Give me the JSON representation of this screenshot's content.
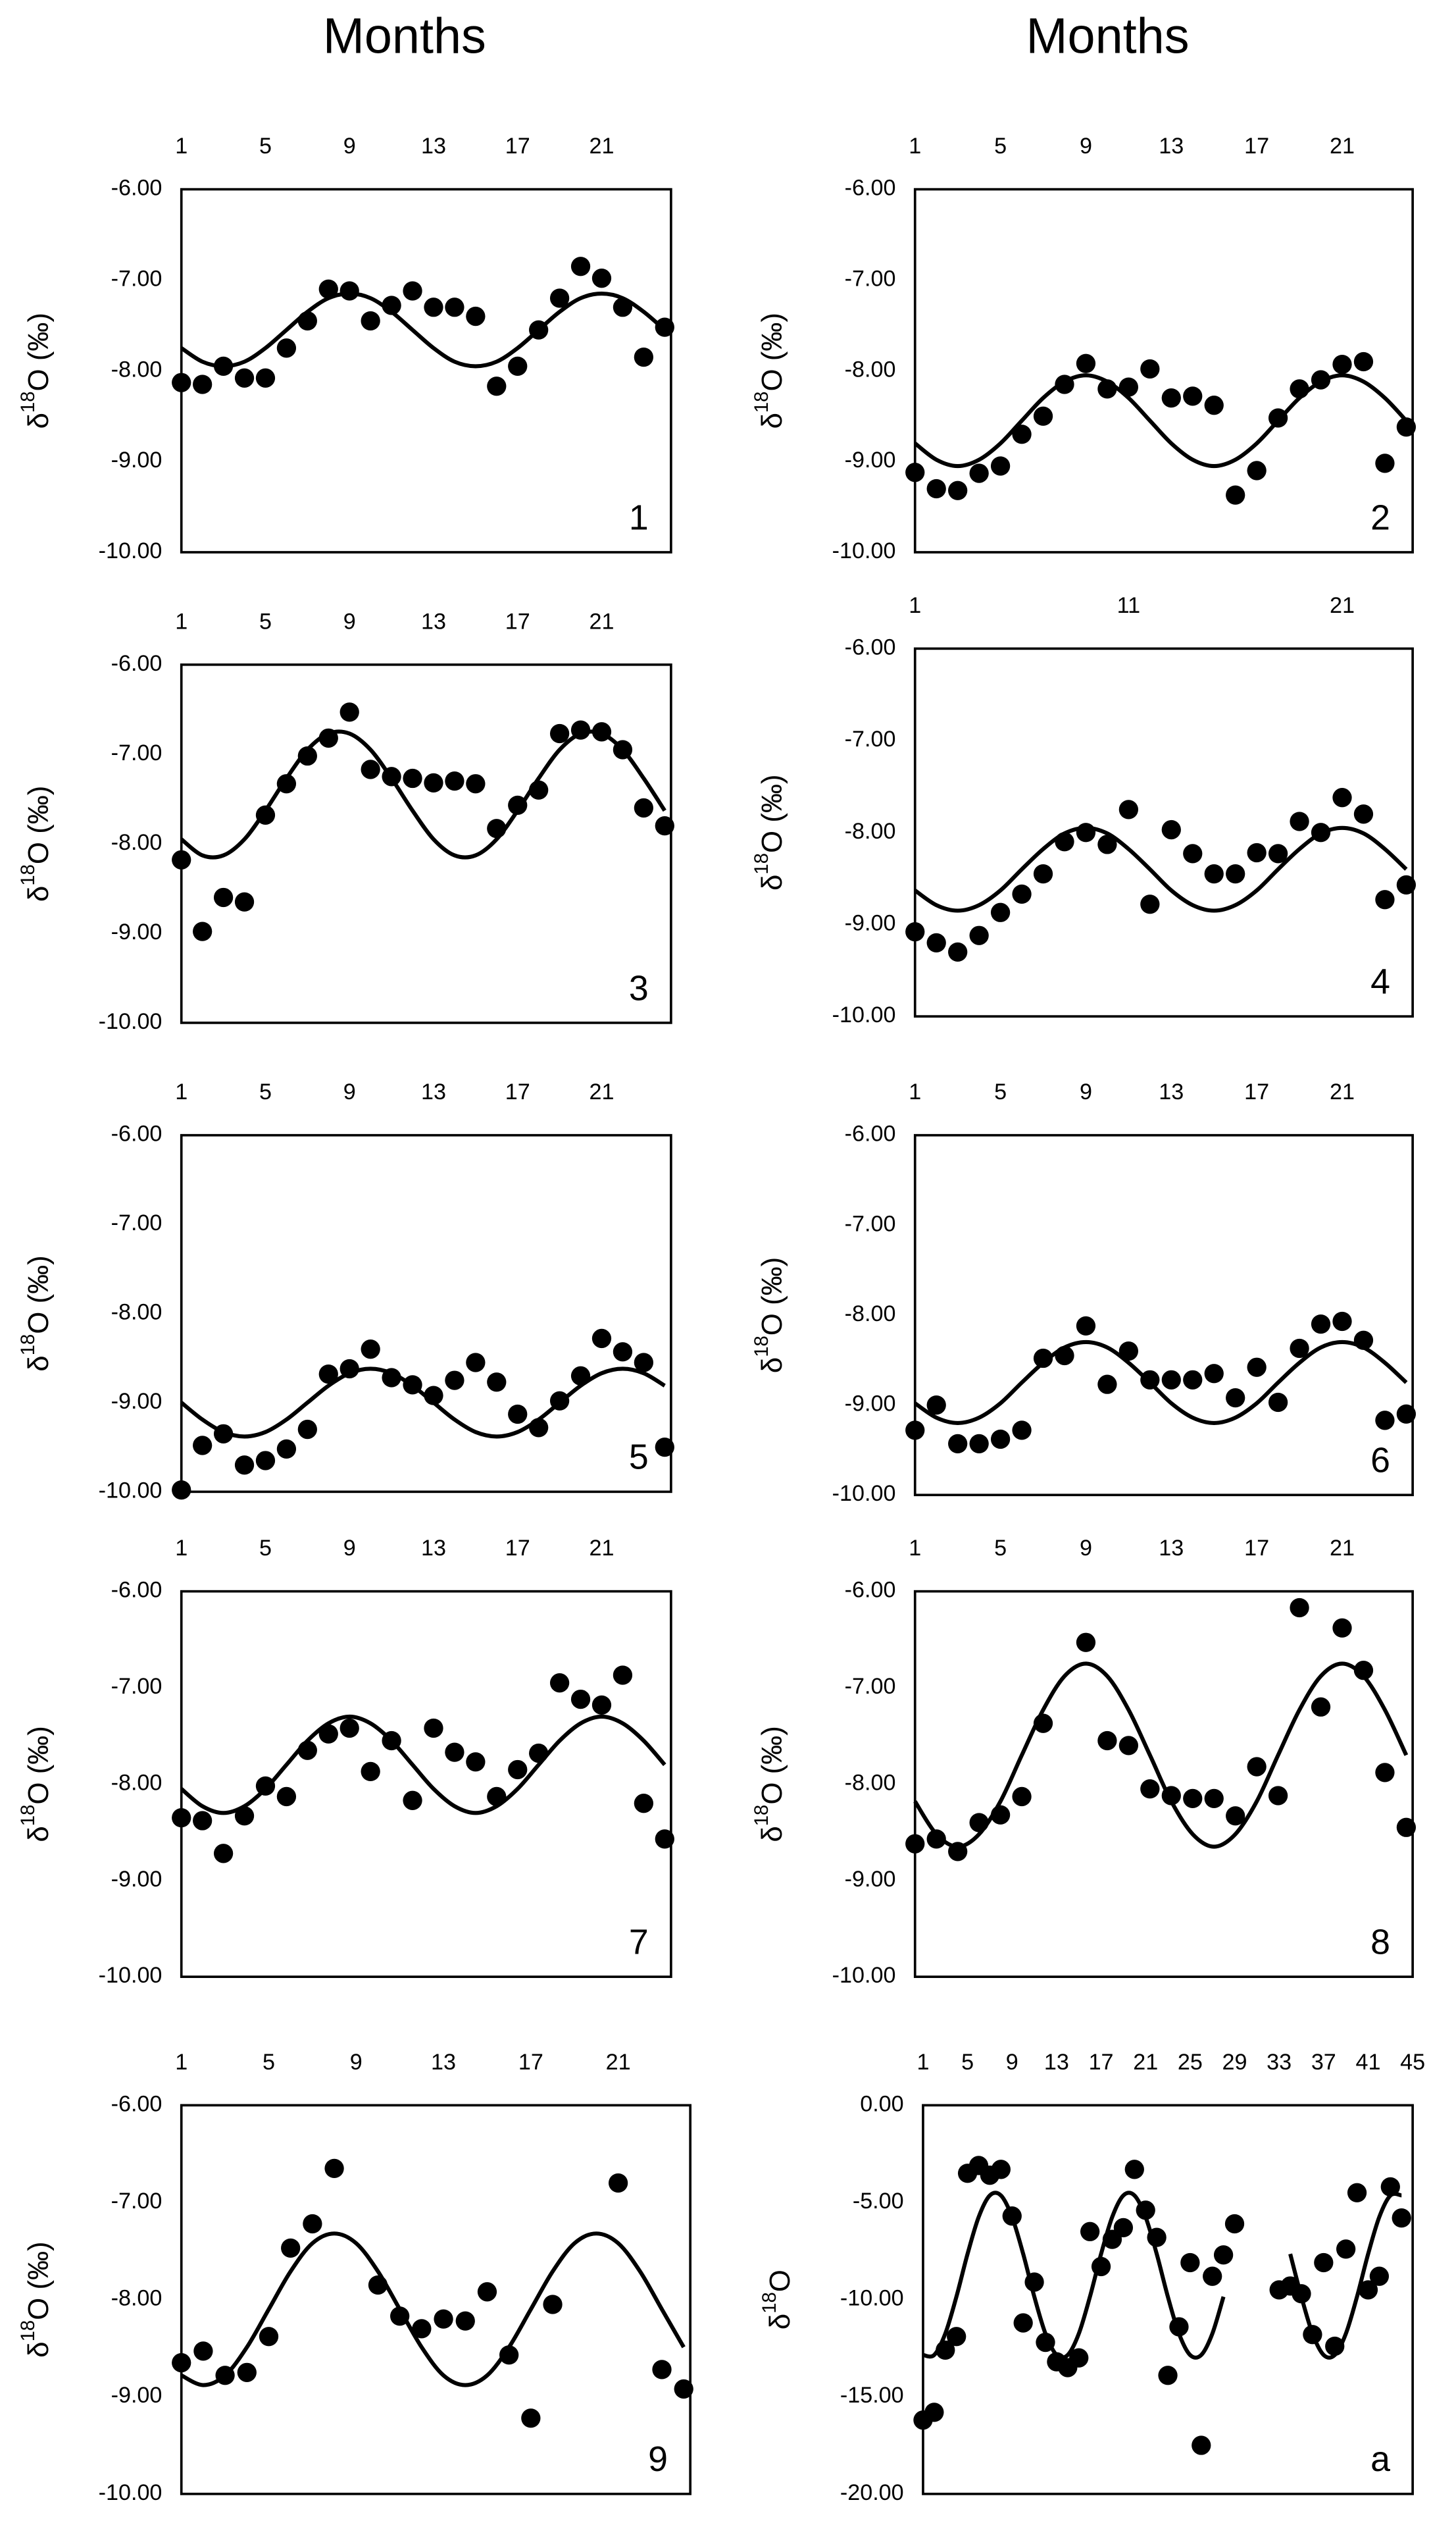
{
  "titles": [
    "Months",
    "Months"
  ],
  "chart_data": [
    {
      "type": "scatter",
      "label": "1",
      "ylabel": [
        "δ",
        "18",
        "O (‰)"
      ],
      "color": "#000000",
      "x": [
        1,
        2,
        3,
        4,
        5,
        6,
        7,
        8,
        9,
        10,
        11,
        12,
        13,
        14,
        15,
        16,
        17,
        18,
        19,
        20,
        21,
        22,
        23,
        24
      ],
      "values": [
        -8.13,
        -8.15,
        -7.95,
        -8.08,
        -8.08,
        -7.75,
        -7.45,
        -7.1,
        -7.12,
        -7.45,
        -7.28,
        -7.12,
        -7.3,
        -7.3,
        -7.4,
        -8.17,
        -7.95,
        -7.55,
        -7.2,
        -6.85,
        -6.98,
        -7.3,
        -7.85,
        -7.52
      ],
      "fit": [
        -7.75,
        -7.9,
        -7.95,
        -7.9,
        -7.75,
        -7.55,
        -7.35,
        -7.2,
        -7.15,
        -7.2,
        -7.35,
        -7.55,
        -7.75,
        -7.9,
        -7.95,
        -7.9,
        -7.75,
        -7.55,
        -7.35,
        -7.2,
        -7.15,
        -7.2,
        -7.35,
        -7.55
      ],
      "xlim": [
        1,
        24.3
      ],
      "xticks": [
        1,
        5,
        9,
        13,
        17,
        21
      ],
      "ylim": [
        -10,
        -6
      ],
      "yticks": [
        {
          "value": -6,
          "label": "-6.00"
        },
        {
          "value": -7,
          "label": "-7.00"
        },
        {
          "value": -8,
          "label": "-8.00"
        },
        {
          "value": -9,
          "label": "-9.00"
        },
        {
          "value": -10,
          "label": "-10.00"
        }
      ]
    },
    {
      "type": "scatter",
      "label": "2",
      "ylabel": [
        "δ",
        "18",
        "O (‰)"
      ],
      "color": "#000000",
      "x": [
        1,
        2,
        3,
        4,
        5,
        6,
        7,
        8,
        9,
        10,
        11,
        12,
        13,
        14,
        15,
        16,
        17,
        18,
        19,
        20,
        21,
        22,
        23,
        24
      ],
      "values": [
        -9.12,
        -9.3,
        -9.32,
        -9.13,
        -9.05,
        -8.7,
        -8.5,
        -8.15,
        -7.92,
        -8.2,
        -8.18,
        -7.98,
        -8.3,
        -8.28,
        -8.38,
        -9.37,
        -9.1,
        -8.52,
        -8.2,
        -8.1,
        -7.93,
        -7.9,
        -9.02,
        -8.62
      ],
      "fit": [
        -8.8,
        -8.98,
        -9.05,
        -8.98,
        -8.8,
        -8.55,
        -8.3,
        -8.12,
        -8.05,
        -8.12,
        -8.3,
        -8.55,
        -8.8,
        -8.98,
        -9.05,
        -8.98,
        -8.8,
        -8.55,
        -8.3,
        -8.12,
        -8.05,
        -8.12,
        -8.3,
        -8.55
      ],
      "xlim": [
        1,
        24.3
      ],
      "xticks": [
        1,
        5,
        9,
        13,
        17,
        21
      ],
      "ylim": [
        -10,
        -6
      ],
      "yticks": [
        {
          "value": -6,
          "label": "-6.00"
        },
        {
          "value": -7,
          "label": "-7.00"
        },
        {
          "value": -8,
          "label": "-8.00"
        },
        {
          "value": -9,
          "label": "-9.00"
        },
        {
          "value": -10,
          "label": "-10.00"
        }
      ]
    },
    {
      "type": "scatter",
      "label": "3",
      "ylabel": [
        "δ",
        "18",
        "O (‰)"
      ],
      "color": "#000000",
      "x": [
        1,
        2,
        3,
        4,
        5,
        6,
        7,
        8,
        9,
        10,
        11,
        12,
        13,
        14,
        15,
        16,
        17,
        18,
        19,
        20,
        21,
        22,
        23,
        24
      ],
      "values": [
        -8.18,
        -8.98,
        -8.6,
        -8.65,
        -7.68,
        -7.33,
        -7.02,
        -6.82,
        -6.53,
        -7.17,
        -7.25,
        -7.27,
        -7.32,
        -7.3,
        -7.33,
        -7.83,
        -7.57,
        -7.4,
        -6.77,
        -6.73,
        -6.75,
        -6.95,
        -7.6,
        -7.8
      ],
      "fit": [
        -7.95,
        -8.13,
        -8.13,
        -7.95,
        -7.63,
        -7.27,
        -6.95,
        -6.77,
        -6.77,
        -6.95,
        -7.27,
        -7.63,
        -7.95,
        -8.13,
        -8.13,
        -7.95,
        -7.63,
        -7.27,
        -6.95,
        -6.77,
        -6.77,
        -6.95,
        -7.27,
        -7.63
      ],
      "xlim": [
        1,
        24.3
      ],
      "xticks": [
        1,
        5,
        9,
        13,
        17,
        21
      ],
      "ylim": [
        -10,
        -6
      ],
      "yticks": [
        {
          "value": -6,
          "label": "-6.00"
        },
        {
          "value": -7,
          "label": "-7.00"
        },
        {
          "value": -8,
          "label": "-8.00"
        },
        {
          "value": -9,
          "label": "-9.00"
        },
        {
          "value": -10,
          "label": "-10.00"
        }
      ]
    },
    {
      "type": "scatter",
      "label": "4",
      "ylabel": [
        "δ",
        "18",
        "O (‰)"
      ],
      "color": "#000000",
      "x": [
        1,
        2,
        3,
        4,
        5,
        6,
        7,
        8,
        9,
        10,
        11,
        12,
        13,
        14,
        15,
        16,
        17,
        18,
        19,
        20,
        21,
        22,
        23,
        24
      ],
      "values": [
        -9.08,
        -9.2,
        -9.3,
        -9.12,
        -8.87,
        -8.67,
        -8.45,
        -8.1,
        -8.0,
        -8.13,
        -7.75,
        -8.78,
        -7.97,
        -8.23,
        -8.45,
        -8.45,
        -8.22,
        -8.23,
        -7.88,
        -8.0,
        -7.62,
        -7.8,
        -8.73,
        -8.57
      ],
      "fit": [
        -8.63,
        -8.79,
        -8.85,
        -8.79,
        -8.63,
        -8.4,
        -8.18,
        -8.01,
        -7.95,
        -8.01,
        -8.18,
        -8.4,
        -8.63,
        -8.79,
        -8.85,
        -8.79,
        -8.63,
        -8.4,
        -8.18,
        -8.01,
        -7.95,
        -8.01,
        -8.18,
        -8.4
      ],
      "xlim": [
        1,
        24.3
      ],
      "xticks": [
        1,
        11,
        21
      ],
      "ylim": [
        -10,
        -6
      ],
      "yticks": [
        {
          "value": -6,
          "label": "-6.00"
        },
        {
          "value": -7,
          "label": "-7.00"
        },
        {
          "value": -8,
          "label": "-8.00"
        },
        {
          "value": -9,
          "label": "-9.00"
        },
        {
          "value": -10,
          "label": "-10.00"
        }
      ]
    },
    {
      "type": "scatter",
      "label": "5",
      "ylabel": [
        "δ",
        "18",
        "O (‰)"
      ],
      "color": "#000000",
      "x": [
        1,
        2,
        3,
        4,
        5,
        6,
        7,
        8,
        9,
        10,
        11,
        12,
        13,
        14,
        15,
        16,
        17,
        18,
        19,
        20,
        21,
        22,
        23,
        24
      ],
      "values": [
        -9.98,
        -9.48,
        -9.35,
        -9.7,
        -9.65,
        -9.52,
        -9.3,
        -8.68,
        -8.62,
        -8.4,
        -8.72,
        -8.8,
        -8.92,
        -8.75,
        -8.55,
        -8.77,
        -9.13,
        -9.28,
        -8.98,
        -8.7,
        -8.28,
        -8.43,
        -8.55,
        -9.5
      ],
      "fit": [
        -9.0,
        -9.19,
        -9.33,
        -9.38,
        -9.33,
        -9.19,
        -9.0,
        -8.81,
        -8.67,
        -8.62,
        -8.67,
        -8.81,
        -9.0,
        -9.19,
        -9.33,
        -9.38,
        -9.33,
        -9.19,
        -9.0,
        -8.81,
        -8.67,
        -8.62,
        -8.67,
        -8.81
      ],
      "xlim": [
        1,
        24.3
      ],
      "xticks": [
        1,
        5,
        9,
        13,
        17,
        21
      ],
      "ylim": [
        -10,
        -6
      ],
      "yticks": [
        {
          "value": -6,
          "label": "-6.00"
        },
        {
          "value": -7,
          "label": "-7.00"
        },
        {
          "value": -8,
          "label": "-8.00"
        },
        {
          "value": -9,
          "label": "-9.00"
        },
        {
          "value": -10,
          "label": "-10.00"
        }
      ]
    },
    {
      "type": "scatter",
      "label": "6",
      "ylabel": [
        "δ",
        "18",
        "O (‰)"
      ],
      "color": "#000000",
      "x": [
        1,
        2,
        3,
        4,
        5,
        6,
        7,
        8,
        9,
        10,
        11,
        12,
        13,
        14,
        15,
        16,
        17,
        18,
        19,
        20,
        21,
        22,
        23,
        24
      ],
      "values": [
        -9.28,
        -9.0,
        -9.43,
        -9.43,
        -9.38,
        -9.28,
        -8.48,
        -8.45,
        -8.12,
        -8.77,
        -8.4,
        -8.72,
        -8.72,
        -8.72,
        -8.65,
        -8.92,
        -8.58,
        -8.97,
        -8.37,
        -8.1,
        -8.07,
        -8.28,
        -9.17,
        -9.1
      ],
      "fit": [
        -8.98,
        -9.14,
        -9.2,
        -9.14,
        -8.98,
        -8.75,
        -8.53,
        -8.36,
        -8.3,
        -8.36,
        -8.53,
        -8.75,
        -8.98,
        -9.14,
        -9.2,
        -9.14,
        -8.98,
        -8.75,
        -8.53,
        -8.36,
        -8.3,
        -8.36,
        -8.53,
        -8.75
      ],
      "xlim": [
        1,
        24.3
      ],
      "xticks": [
        1,
        5,
        9,
        13,
        17,
        21
      ],
      "ylim": [
        -10,
        -6
      ],
      "yticks": [
        {
          "value": -6,
          "label": "-6.00"
        },
        {
          "value": -7,
          "label": "-7.00"
        },
        {
          "value": -8,
          "label": "-8.00"
        },
        {
          "value": -9,
          "label": "-9.00"
        },
        {
          "value": -10,
          "label": "-10.00"
        }
      ]
    },
    {
      "type": "scatter",
      "label": "7",
      "ylabel": [
        "δ",
        "18",
        "O (‰)"
      ],
      "color": "#000000",
      "x": [
        1,
        2,
        3,
        4,
        5,
        6,
        7,
        8,
        9,
        10,
        11,
        12,
        13,
        14,
        15,
        16,
        17,
        18,
        19,
        20,
        21,
        22,
        23,
        24
      ],
      "values": [
        -8.35,
        -8.38,
        -8.72,
        -8.33,
        -8.02,
        -8.13,
        -7.65,
        -7.48,
        -7.42,
        -7.87,
        -7.55,
        -8.17,
        -7.42,
        -7.67,
        -7.77,
        -8.13,
        -7.85,
        -7.68,
        -6.95,
        -7.12,
        -7.18,
        -6.87,
        -8.2,
        -8.57
      ],
      "fit": [
        -8.05,
        -8.23,
        -8.3,
        -8.23,
        -8.05,
        -7.8,
        -7.55,
        -7.37,
        -7.3,
        -7.37,
        -7.55,
        -7.8,
        -8.05,
        -8.23,
        -8.3,
        -8.23,
        -8.05,
        -7.8,
        -7.55,
        -7.37,
        -7.3,
        -7.37,
        -7.55,
        -7.8
      ],
      "xlim": [
        1,
        24.3
      ],
      "xticks": [
        1,
        5,
        9,
        13,
        17,
        21
      ],
      "ylim": [
        -10,
        -6
      ],
      "yticks": [
        {
          "value": -6,
          "label": "-6.00"
        },
        {
          "value": -7,
          "label": "-7.00"
        },
        {
          "value": -8,
          "label": "-8.00"
        },
        {
          "value": -9,
          "label": "-9.00"
        },
        {
          "value": -10,
          "label": "-10.00"
        }
      ]
    },
    {
      "type": "scatter",
      "label": "8",
      "ylabel": [
        "δ",
        "18",
        "O (‰)"
      ],
      "color": "#000000",
      "x": [
        1,
        2,
        3,
        4,
        5,
        6,
        7,
        8,
        9,
        10,
        11,
        12,
        13,
        14,
        15,
        16,
        17,
        18,
        19,
        20,
        21,
        22,
        23,
        24
      ],
      "values": [
        -8.62,
        -8.57,
        -8.7,
        -8.4,
        -8.32,
        -8.13,
        -7.37,
        null,
        -6.53,
        -7.55,
        -7.6,
        -8.05,
        -8.12,
        -8.15,
        -8.15,
        -8.33,
        -7.82,
        -8.12,
        -6.17,
        -7.2,
        -6.38,
        -6.82,
        -7.88,
        -8.45
      ],
      "fit": [
        -8.18,
        -8.52,
        -8.65,
        -8.52,
        -8.18,
        -7.7,
        -7.23,
        -6.88,
        -6.75,
        -6.88,
        -7.23,
        -7.7,
        -8.18,
        -8.52,
        -8.65,
        -8.52,
        -8.18,
        -7.7,
        -7.23,
        -6.88,
        -6.75,
        -6.88,
        -7.23,
        -7.7
      ],
      "xlim": [
        1,
        24.3
      ],
      "xticks": [
        1,
        5,
        9,
        13,
        17,
        21
      ],
      "ylim": [
        -10,
        -6
      ],
      "yticks": [
        {
          "value": -6,
          "label": "-6.00"
        },
        {
          "value": -7,
          "label": "-7.00"
        },
        {
          "value": -8,
          "label": "-8.00"
        },
        {
          "value": -9,
          "label": "-9.00"
        },
        {
          "value": -10,
          "label": "-10.00"
        }
      ]
    },
    {
      "type": "scatter",
      "label": "9",
      "ylabel": [
        "δ",
        "18",
        "O (‰)"
      ],
      "color": "#000000",
      "x": [
        1,
        2,
        3,
        4,
        5,
        6,
        7,
        8,
        9,
        10,
        11,
        12,
        13,
        14,
        15,
        16,
        17,
        18,
        19,
        20,
        21,
        22,
        23,
        24
      ],
      "values": [
        -8.65,
        -8.53,
        -8.78,
        -8.75,
        -8.38,
        -7.47,
        -7.22,
        -6.65,
        null,
        -7.85,
        -8.17,
        -8.3,
        -8.2,
        -8.22,
        -7.92,
        -8.57,
        -9.22,
        -8.05,
        null,
        null,
        -6.8,
        null,
        -8.72,
        -8.92
      ],
      "fit": [
        -8.78,
        -8.88,
        -8.78,
        -8.49,
        -8.1,
        -7.71,
        -7.42,
        -7.32,
        -7.42,
        -7.71,
        -8.1,
        -8.49,
        -8.78,
        -8.88,
        -8.78,
        -8.49,
        -8.1,
        -7.71,
        -7.42,
        -7.32,
        -7.42,
        -7.71,
        -8.1,
        -8.49
      ],
      "xlim": [
        1,
        24.3
      ],
      "xticks": [
        1,
        5,
        9,
        13,
        17,
        21
      ],
      "ylim": [
        -10,
        -6
      ],
      "yticks": [
        {
          "value": -6,
          "label": "-6.00"
        },
        {
          "value": -7,
          "label": "-7.00"
        },
        {
          "value": -8,
          "label": "-8.00"
        },
        {
          "value": -9,
          "label": "-9.00"
        },
        {
          "value": -10,
          "label": "-10.00"
        }
      ]
    },
    {
      "type": "scatter",
      "label": "a",
      "ylabel": [
        "δ",
        "18",
        "O"
      ],
      "color": "#000000",
      "x": [
        1,
        2,
        3,
        4,
        5,
        6,
        7,
        8,
        9,
        10,
        11,
        12,
        13,
        14,
        15,
        16,
        17,
        18,
        19,
        20,
        21,
        22,
        23,
        24,
        25,
        26,
        27,
        28,
        29,
        30,
        31,
        32,
        33,
        34,
        35,
        36,
        37,
        38,
        39,
        40,
        41,
        42,
        43,
        44
      ],
      "values": [
        -16.2,
        -15.8,
        -12.6,
        -11.9,
        -3.5,
        -3.1,
        -3.6,
        -3.3,
        -5.7,
        -11.2,
        -9.1,
        -12.2,
        -13.2,
        -13.5,
        -13.0,
        -6.5,
        -8.3,
        -6.9,
        -6.3,
        -3.3,
        -5.4,
        -6.8,
        -13.9,
        -11.4,
        -8.1,
        -17.5,
        -8.8,
        -7.7,
        -6.1,
        null,
        null,
        null,
        -9.5,
        -9.3,
        -9.7,
        -11.8,
        -8.1,
        -12.4,
        -7.4,
        -4.5,
        -9.5,
        -8.8,
        -4.2,
        -5.8
      ],
      "fit": [
        -12.85,
        -12.85,
        -11.75,
        -9.85,
        -7.65,
        -5.75,
        -4.64,
        -4.64,
        -5.75,
        -7.65,
        -9.85,
        -11.75,
        -12.85,
        -12.85,
        -11.75,
        -9.85,
        -7.65,
        -5.75,
        -4.64,
        -4.64,
        -5.75,
        -7.65,
        -9.85,
        -11.75,
        -12.85,
        -12.85,
        -11.75,
        -9.85,
        null,
        null,
        null,
        null,
        null,
        -7.65,
        -9.85,
        -11.75,
        -12.85,
        -12.85,
        -11.75,
        -9.85,
        -7.65,
        -5.75,
        -4.64,
        -4.64
      ],
      "xlim": [
        1,
        45
      ],
      "xticks": [
        1,
        5,
        9,
        13,
        17,
        21,
        25,
        29,
        33,
        37,
        41,
        45
      ],
      "ylim": [
        -20,
        0
      ],
      "yticks": [
        {
          "value": 0,
          "label": "0.00"
        },
        {
          "value": -5,
          "label": "-5.00"
        },
        {
          "value": -10,
          "label": "-10.00"
        },
        {
          "value": -15,
          "label": "-15.00"
        },
        {
          "value": -20,
          "label": "-20.00"
        }
      ]
    }
  ]
}
